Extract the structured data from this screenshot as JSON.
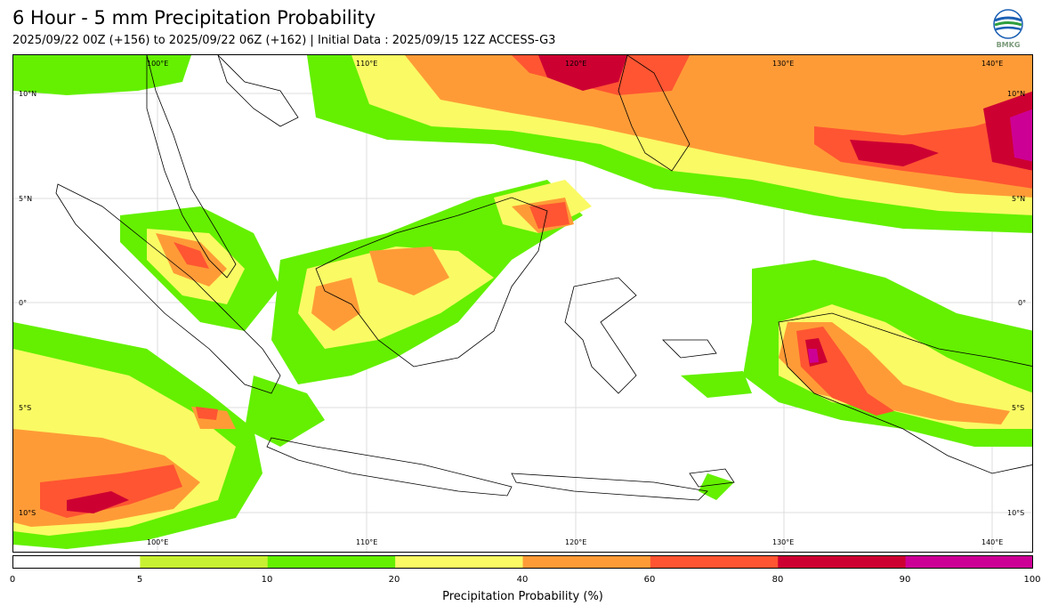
{
  "header": {
    "title": "6 Hour - 5 mm Precipitation Probability",
    "subtitle": "2025/09/22 00Z (+156) to 2025/09/22 06Z (+162) | Initial Data : 2025/09/15 12Z ACCESS-G3"
  },
  "logo": {
    "text": "BMKG",
    "icon": "bmkg-logo"
  },
  "map": {
    "region": "Indonesia",
    "lon_labels": [
      "100°E",
      "110°E",
      "120°E",
      "130°E",
      "140°E"
    ],
    "lat_labels": [
      "10°N",
      "5°N",
      "0°",
      "5°S",
      "10°S"
    ],
    "lat_range": [
      -12,
      12
    ],
    "lon_range": [
      94,
      143
    ]
  },
  "colorbar": {
    "label": "Precipitation Probability (%)",
    "ticks": [
      "0",
      "5",
      "10",
      "20",
      "40",
      "60",
      "80",
      "90",
      "100"
    ],
    "colors": [
      "#ffffff",
      "#c8f032",
      "#64f000",
      "#fafa64",
      "#ff9b37",
      "#ff5532",
      "#cd0032",
      "#cd0096"
    ]
  }
}
